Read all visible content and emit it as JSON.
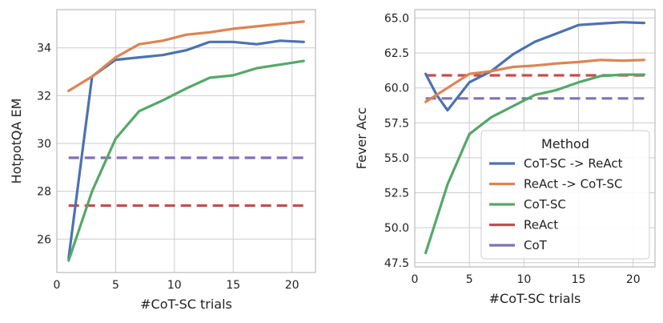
{
  "chart_data": [
    {
      "type": "line",
      "xlabel": "#CoT-SC trials",
      "ylabel": "HotpotQA EM",
      "xlim": [
        0,
        22
      ],
      "ylim": [
        24.6,
        35.6
      ],
      "xticks": [
        0,
        5,
        10,
        15,
        20
      ],
      "yticks": [
        26,
        28,
        30,
        32,
        34
      ],
      "grid": true,
      "series": [
        {
          "name": "CoT-SC -> ReAct",
          "color": "#4c72b0",
          "dashed": false,
          "x": [
            1,
            3,
            5,
            7,
            9,
            11,
            13,
            15,
            17,
            19,
            21
          ],
          "y": [
            25.2,
            32.8,
            33.5,
            33.6,
            33.7,
            33.9,
            34.25,
            34.25,
            34.15,
            34.3,
            34.25
          ]
        },
        {
          "name": "ReAct -> CoT-SC",
          "color": "#dd8452",
          "dashed": false,
          "x": [
            1,
            3,
            5,
            7,
            9,
            11,
            13,
            15,
            17,
            19,
            21
          ],
          "y": [
            32.2,
            32.8,
            33.6,
            34.15,
            34.3,
            34.55,
            34.65,
            34.8,
            34.9,
            35.0,
            35.1
          ]
        },
        {
          "name": "CoT-SC",
          "color": "#55a868",
          "dashed": false,
          "x": [
            1,
            3,
            5,
            7,
            9,
            11,
            13,
            15,
            17,
            19,
            21
          ],
          "y": [
            25.1,
            28.0,
            30.2,
            31.35,
            31.8,
            32.3,
            32.75,
            32.85,
            33.15,
            33.3,
            33.45
          ]
        },
        {
          "name": "ReAct",
          "color": "#c44e52",
          "dashed": true,
          "x": [
            1,
            21
          ],
          "y": [
            27.4,
            27.4
          ]
        },
        {
          "name": "CoT",
          "color": "#8172b3",
          "dashed": true,
          "x": [
            1,
            21
          ],
          "y": [
            29.4,
            29.4
          ]
        }
      ]
    },
    {
      "type": "line",
      "xlabel": "#CoT-SC trials",
      "ylabel": "Fever Acc",
      "xlim": [
        0,
        22
      ],
      "ylim": [
        47.2,
        65.6
      ],
      "xticks": [
        0,
        5,
        10,
        15,
        20
      ],
      "yticks": [
        47.5,
        50.0,
        52.5,
        55.0,
        57.5,
        60.0,
        62.5,
        65.0
      ],
      "grid": true,
      "legend": {
        "title": "Method",
        "location": "lower-right"
      },
      "series": [
        {
          "name": "CoT-SC -> ReAct",
          "color": "#4c72b0",
          "dashed": false,
          "x": [
            1,
            2,
            3,
            5,
            7,
            9,
            11,
            13,
            15,
            17,
            19,
            21
          ],
          "y": [
            61.0,
            59.5,
            58.4,
            60.4,
            61.2,
            62.4,
            63.3,
            63.9,
            64.5,
            64.6,
            64.7,
            64.65
          ]
        },
        {
          "name": "ReAct -> CoT-SC",
          "color": "#dd8452",
          "dashed": false,
          "x": [
            1,
            3,
            5,
            7,
            9,
            11,
            13,
            15,
            17,
            19,
            21
          ],
          "y": [
            59.0,
            60.0,
            61.0,
            61.2,
            61.5,
            61.6,
            61.75,
            61.85,
            62.0,
            61.95,
            62.0
          ]
        },
        {
          "name": "CoT-SC",
          "color": "#55a868",
          "dashed": false,
          "x": [
            1,
            3,
            5,
            7,
            9,
            11,
            13,
            15,
            17,
            19,
            21
          ],
          "y": [
            48.2,
            53.1,
            56.7,
            57.9,
            58.7,
            59.5,
            59.85,
            60.4,
            60.85,
            60.95,
            60.95
          ]
        },
        {
          "name": "ReAct",
          "color": "#c44e52",
          "dashed": true,
          "x": [
            1,
            21
          ],
          "y": [
            60.9,
            60.9
          ]
        },
        {
          "name": "CoT",
          "color": "#8172b3",
          "dashed": true,
          "x": [
            1,
            21
          ],
          "y": [
            59.25,
            59.25
          ]
        }
      ]
    }
  ]
}
